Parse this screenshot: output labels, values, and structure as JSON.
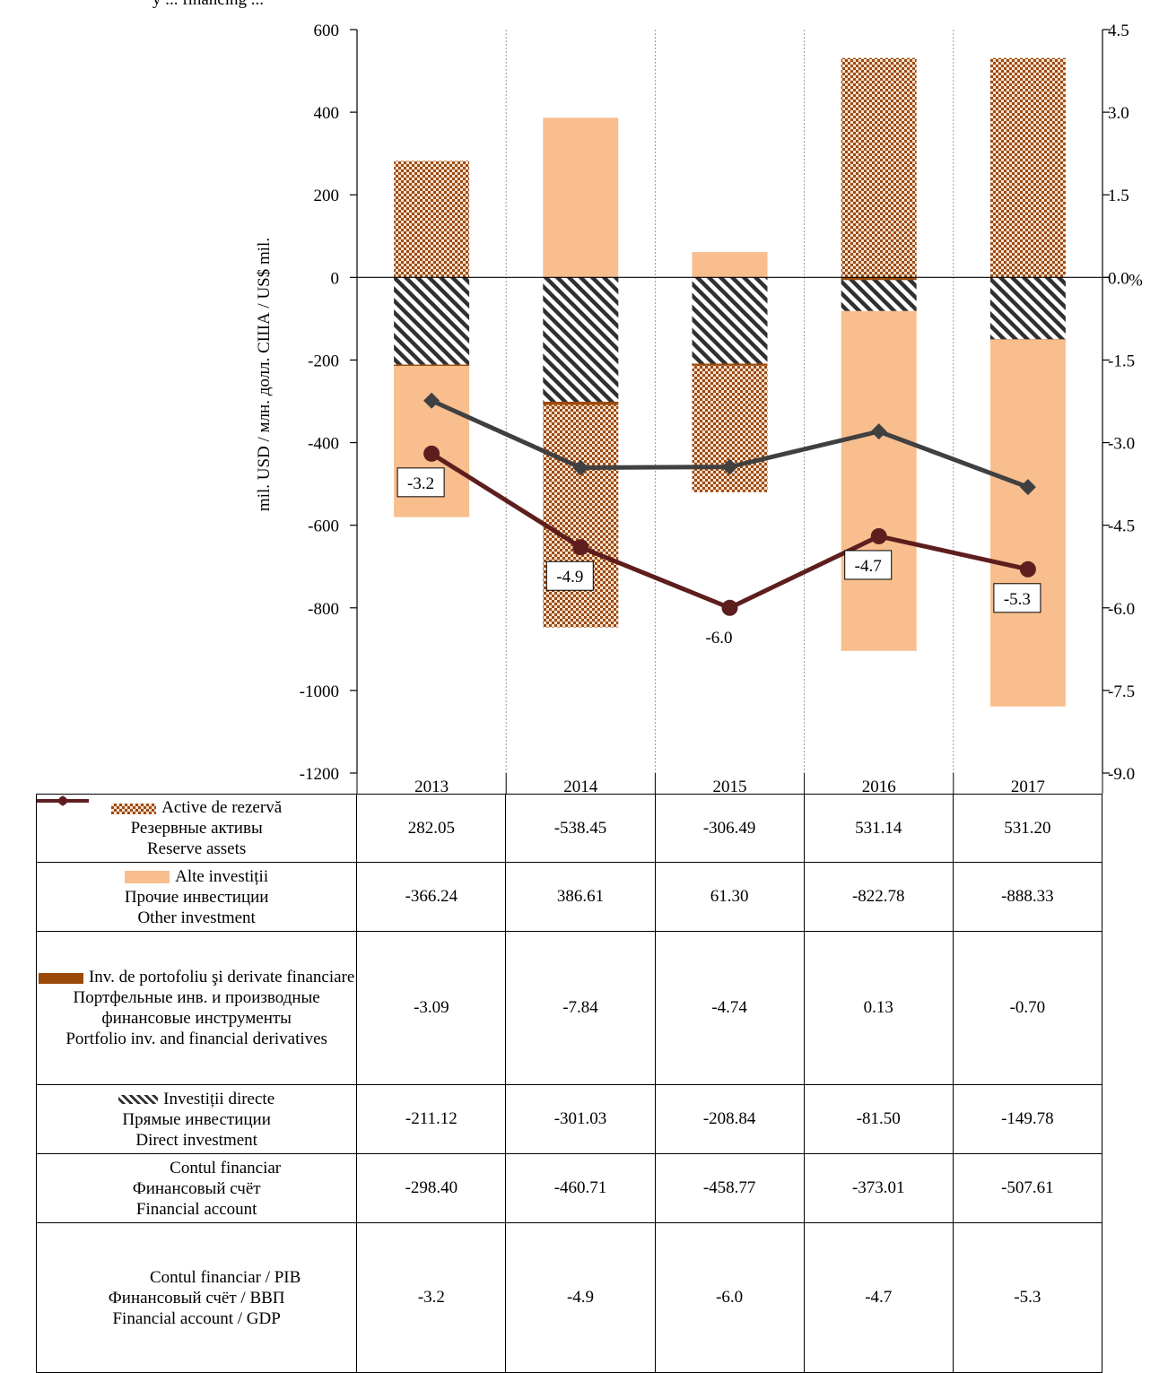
{
  "header_text": "y ... financing ...",
  "chart_data": {
    "type": "bar",
    "categories": [
      "2013",
      "2014",
      "2015",
      "2016",
      "2017"
    ],
    "left_axis": {
      "label": "mil. USD / млн. долл. США / US$ mil.",
      "ylim": [
        -1200,
        600
      ],
      "ticks": [
        "600",
        "400",
        "200",
        "0",
        "-200",
        "-400",
        "-600",
        "-800",
        "-1000",
        "-1200"
      ]
    },
    "right_axis": {
      "unit_label": "%",
      "ylim": [
        -9.0,
        4.5
      ],
      "ticks": [
        "4.5",
        "3.0",
        "1.5",
        "0.0",
        "-1.5",
        "-3.0",
        "-4.5",
        "-6.0",
        "-7.5",
        "-9.0"
      ]
    },
    "stacked": true,
    "grid": "vertical dotted",
    "series": [
      {
        "key": "reserve",
        "type": "bar",
        "pattern": "checker",
        "color": "#9c4a14",
        "names": [
          "Active de rezervă",
          "Резервные активы",
          "Reserve assets"
        ],
        "values": [
          282.05,
          -538.45,
          -306.49,
          531.14,
          531.2
        ],
        "labels": [
          "282.05",
          "-538.45",
          "-306.49",
          "531.14",
          "531.20"
        ]
      },
      {
        "key": "other",
        "type": "bar",
        "pattern": "solid",
        "color": "#f8be8e",
        "names": [
          "Alte investiții",
          "Прочие инвестиции",
          "Other investment"
        ],
        "values": [
          -366.24,
          386.61,
          61.3,
          -822.78,
          -888.33
        ],
        "labels": [
          "-366.24",
          "386.61",
          "61.30",
          "-822.78",
          "-888.33"
        ]
      },
      {
        "key": "portfolio",
        "type": "bar",
        "pattern": "solid",
        "color": "#9c4a0a",
        "names": [
          "Inv. de portofoliu şi derivate financiare",
          "Портфельные инв. и производные финансовые инструменты",
          "Portfolio inv. and financial derivatives"
        ],
        "values": [
          -3.09,
          -7.84,
          -4.74,
          0.13,
          -0.7
        ],
        "labels": [
          "-3.09",
          "-7.84",
          "-4.74",
          "0.13",
          "-0.70"
        ]
      },
      {
        "key": "direct",
        "type": "bar",
        "pattern": "diagonal",
        "color": "#303030",
        "names": [
          "Investiții directe",
          "Прямые инвестиции",
          "Direct investment"
        ],
        "values": [
          -211.12,
          -301.03,
          -208.84,
          -81.5,
          -149.78
        ],
        "labels": [
          "-211.12",
          "-301.03",
          "-208.84",
          "-81.50",
          "-149.78"
        ]
      },
      {
        "key": "financial_account",
        "type": "line",
        "axis": "left",
        "marker": "diamond",
        "color": "#404040",
        "names": [
          "Contul financiar",
          "Финансовый счёт",
          "Financial account"
        ],
        "values": [
          -298.4,
          -460.71,
          -458.77,
          -373.01,
          -507.61
        ],
        "labels": [
          "-298.40",
          "-460.71",
          "-458.77",
          "-373.01",
          "-507.61"
        ]
      },
      {
        "key": "fa_gdp",
        "type": "line",
        "axis": "right",
        "marker": "circle",
        "color": "#5e1e1e",
        "names": [
          "Contul financiar / PIB",
          "Финансовый счёт / ВВП",
          "Financial account / GDP"
        ],
        "values": [
          -3.2,
          -4.9,
          -6.0,
          -4.7,
          -5.3
        ],
        "labels": [
          "-3.2",
          "-4.9",
          "-6.0",
          "-4.7",
          "-5.3"
        ]
      }
    ]
  }
}
